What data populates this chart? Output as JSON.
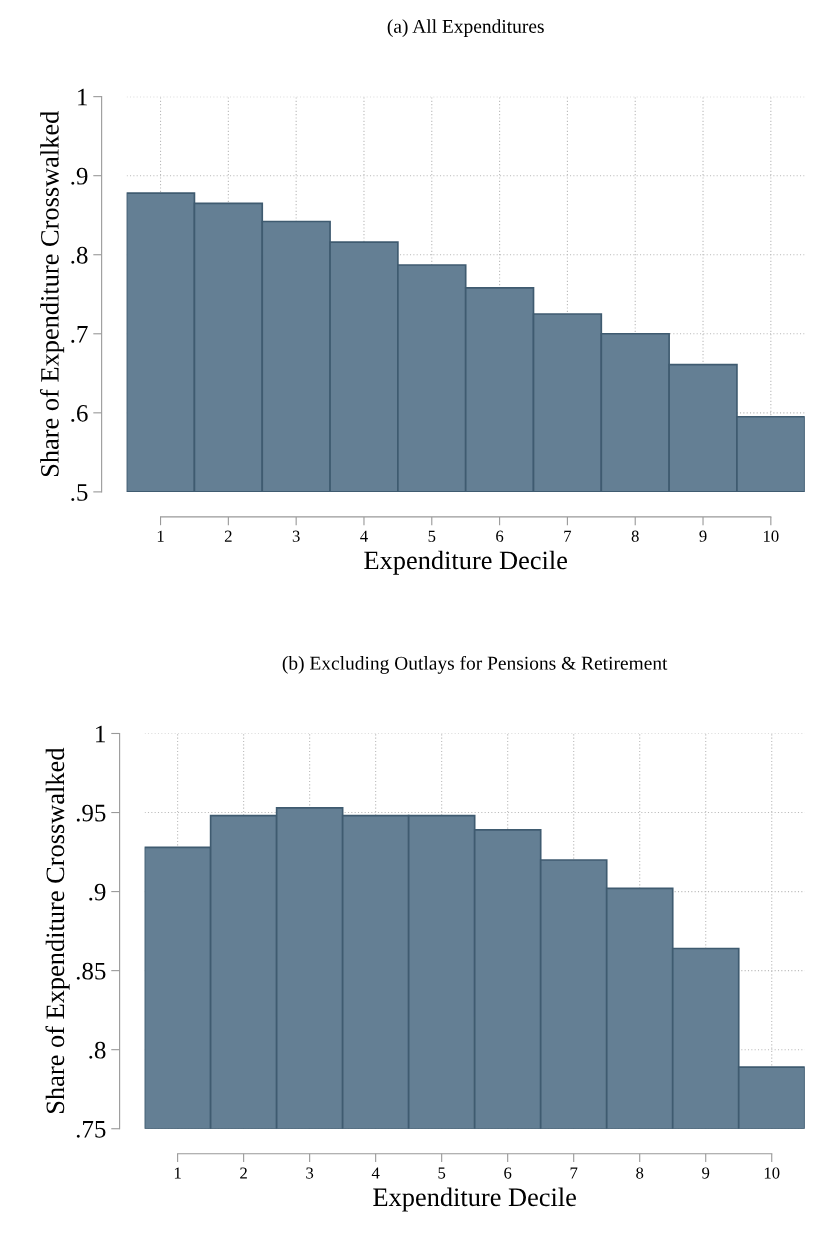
{
  "chart_data": [
    {
      "type": "bar",
      "title": "(a) All Expenditures",
      "xlabel": "Expenditure Decile",
      "ylabel": "Share of Expenditure Crosswalked",
      "categories": [
        "1",
        "2",
        "3",
        "4",
        "5",
        "6",
        "7",
        "8",
        "9",
        "10"
      ],
      "values": [
        0.878,
        0.865,
        0.842,
        0.816,
        0.787,
        0.758,
        0.725,
        0.7,
        0.661,
        0.595
      ],
      "color": "#647f94",
      "ylim": [
        0.5,
        1
      ],
      "yticks": [
        {
          "value": 0.5,
          "label": ".5"
        },
        {
          "value": 0.6,
          "label": ".6"
        },
        {
          "value": 0.7,
          "label": ".7"
        },
        {
          "value": 0.8,
          "label": ".8"
        },
        {
          "value": 0.9,
          "label": ".9"
        },
        1
      ],
      "grid": true
    },
    {
      "type": "bar",
      "title": "(b) Excluding Outlays for Pensions & Retirement",
      "xlabel": "Expenditure Decile",
      "ylabel": "Share of Expenditure Crosswalked",
      "categories": [
        "1",
        "2",
        "3",
        "4",
        "5",
        "6",
        "7",
        "8",
        "9",
        "10"
      ],
      "values": [
        0.928,
        0.948,
        0.953,
        0.948,
        0.948,
        0.939,
        0.92,
        0.902,
        0.864,
        0.789
      ],
      "color": "#647f94",
      "ylim": [
        0.75,
        1
      ],
      "yticks": [
        {
          "value": 0.75,
          "label": ".75"
        },
        {
          "value": 0.8,
          "label": ".8"
        },
        {
          "value": 0.85,
          "label": ".85"
        },
        {
          "value": 0.9,
          "label": ".9"
        },
        {
          "value": 0.95,
          "label": ".95"
        },
        1
      ],
      "grid": true
    }
  ]
}
